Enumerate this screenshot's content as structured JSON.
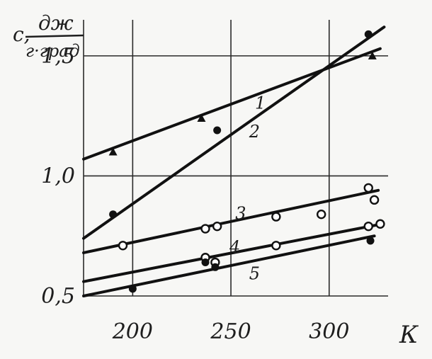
{
  "chart_data": {
    "type": "line",
    "title": "",
    "ylabel": "с, дж/г·град",
    "ylabel_parts": {
      "symbol": "с,",
      "numerator": "дж",
      "denominator": "г·град"
    },
    "xlabel": "К",
    "xlim": [
      175,
      330
    ],
    "ylim": [
      0.5,
      1.65
    ],
    "x_ticks": [
      200,
      250,
      300
    ],
    "x_tick_labels": [
      "200",
      "250",
      "300"
    ],
    "y_ticks": [
      0.5,
      1.0,
      1.5
    ],
    "y_tick_labels": [
      "0,5",
      "1,0",
      "1,5"
    ],
    "grid": true,
    "series": [
      {
        "name": "1",
        "marker": "triangle",
        "line": [
          [
            175,
            1.07
          ],
          [
            326,
            1.53
          ]
        ],
        "points": [
          [
            190,
            1.1
          ],
          [
            235,
            1.24
          ],
          [
            322,
            1.5
          ]
        ],
        "label_at": [
          265,
          1.28
        ]
      },
      {
        "name": "2",
        "marker": "dot",
        "line": [
          [
            175,
            0.74
          ],
          [
            328,
            1.62
          ]
        ],
        "points": [
          [
            190,
            0.84
          ],
          [
            243,
            1.19
          ],
          [
            320,
            1.59
          ]
        ],
        "label_at": [
          262,
          1.16
        ]
      },
      {
        "name": "3",
        "marker": "circle",
        "line": [
          [
            175,
            0.68
          ],
          [
            325,
            0.94
          ]
        ],
        "points": [
          [
            195,
            0.71
          ],
          [
            237,
            0.78
          ],
          [
            243,
            0.79
          ],
          [
            273,
            0.83
          ],
          [
            296,
            0.84
          ],
          [
            320,
            0.95
          ],
          [
            323,
            0.9
          ]
        ],
        "label_at": [
          255,
          0.82
        ]
      },
      {
        "name": "4",
        "marker": "circle",
        "line": [
          [
            175,
            0.56
          ],
          [
            327,
            0.8
          ]
        ],
        "points": [
          [
            237,
            0.66
          ],
          [
            242,
            0.64
          ],
          [
            273,
            0.71
          ],
          [
            320,
            0.79
          ],
          [
            326,
            0.8
          ]
        ],
        "label_at": [
          252,
          0.68
        ]
      },
      {
        "name": "5",
        "marker": "dot",
        "line": [
          [
            175,
            0.5
          ],
          [
            323,
            0.75
          ]
        ],
        "points": [
          [
            200,
            0.53
          ],
          [
            237,
            0.64
          ],
          [
            242,
            0.62
          ],
          [
            321,
            0.73
          ]
        ],
        "label_at": [
          262,
          0.57
        ]
      }
    ]
  }
}
